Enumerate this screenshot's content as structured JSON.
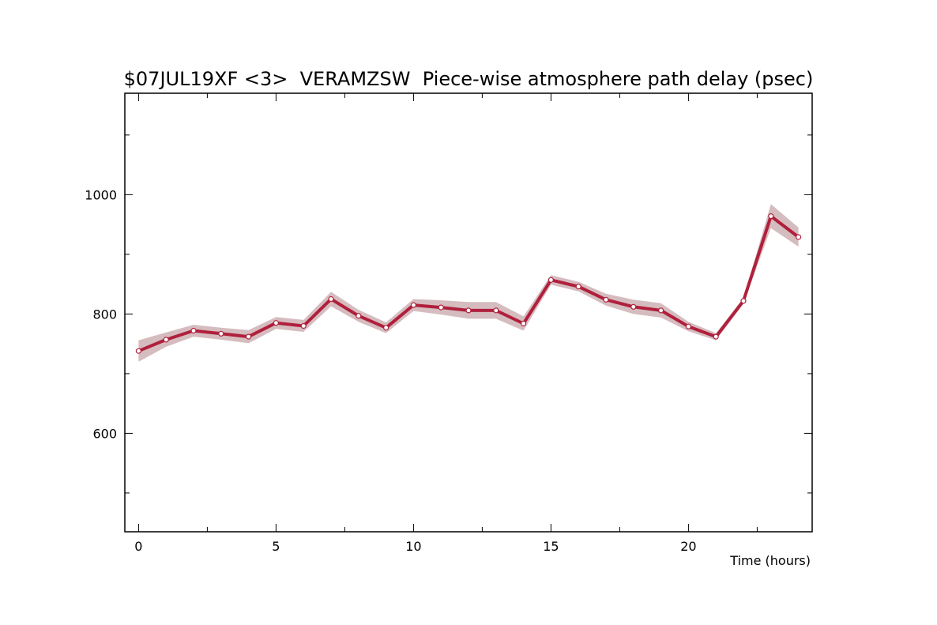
{
  "chart_data": {
    "type": "line",
    "title": "$07JUL19XF <3>  VERAMZSW  Piece-wise atmosphere path delay (psec)",
    "xlabel": "Time (hours)",
    "ylabel": "",
    "xlim": [
      -0.5,
      24.5
    ],
    "ylim": [
      435,
      1170
    ],
    "x_ticks": [
      0,
      5,
      10,
      15,
      20
    ],
    "y_ticks": [
      600,
      800,
      1000
    ],
    "grid": false,
    "colors": {
      "line": "#b0203c",
      "band": "#d5bcbf",
      "marker_fill": "#ffffff"
    },
    "series": [
      {
        "x": [
          0,
          1,
          2,
          3,
          4,
          5,
          6,
          7,
          8,
          9,
          10,
          11,
          12,
          13,
          14,
          15,
          16,
          17,
          18,
          19,
          20,
          21,
          22,
          23,
          24
        ],
        "values": [
          738,
          757,
          772,
          767,
          762,
          785,
          780,
          825,
          797,
          777,
          815,
          811,
          806,
          806,
          784,
          857,
          846,
          824,
          812,
          806,
          779,
          762,
          822,
          964,
          929
        ],
        "error": [
          18,
          12,
          10,
          10,
          11,
          10,
          10,
          12,
          10,
          9,
          10,
          12,
          14,
          14,
          12,
          8,
          8,
          10,
          12,
          12,
          8,
          6,
          5,
          20,
          16
        ]
      }
    ]
  }
}
